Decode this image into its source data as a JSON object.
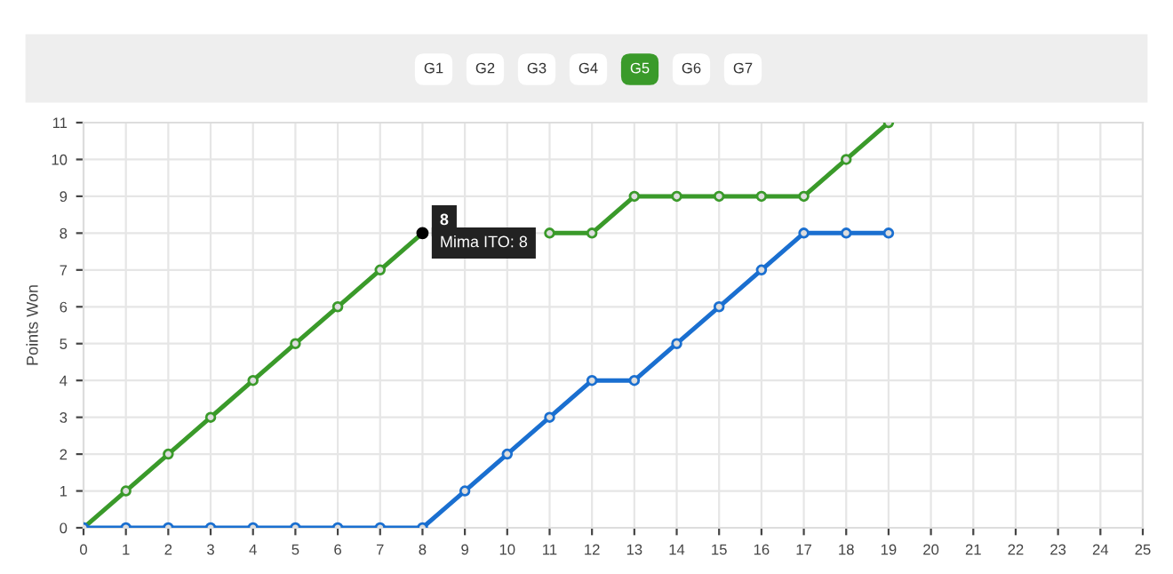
{
  "chart_data": {
    "type": "line",
    "ylabel": "Points Won",
    "x": [
      0,
      1,
      2,
      3,
      4,
      5,
      6,
      7,
      8,
      9,
      10,
      11,
      12,
      13,
      14,
      15,
      16,
      17,
      18,
      19
    ],
    "series": [
      {
        "color": "#3a9a2a",
        "values": [
          0,
          1,
          2,
          3,
          4,
          5,
          6,
          7,
          8,
          null,
          null,
          8,
          8,
          9,
          9,
          9,
          9,
          9,
          10,
          11
        ]
      },
      {
        "color": "#1a6fd0",
        "values": [
          0,
          0,
          0,
          0,
          0,
          0,
          0,
          0,
          0,
          1,
          2,
          3,
          4,
          4,
          5,
          6,
          7,
          8,
          8,
          8
        ]
      }
    ],
    "xlim": [
      0,
      25
    ],
    "xticks": [
      0,
      1,
      2,
      3,
      4,
      5,
      6,
      7,
      8,
      9,
      10,
      11,
      12,
      13,
      14,
      15,
      16,
      17,
      18,
      19,
      20,
      21,
      22,
      23,
      24,
      25
    ],
    "ylim": [
      0,
      11
    ],
    "yticks": [
      0,
      1,
      2,
      3,
      4,
      5,
      6,
      7,
      8,
      9,
      10,
      11
    ],
    "grid": true,
    "marker": "circle",
    "line_style": "solid",
    "legend": false,
    "annotations": [
      "G1",
      "G2",
      "G3",
      "G4",
      "G5",
      "G6",
      "G7",
      {
        "text": "8",
        "x": 8,
        "y": 8
      },
      {
        "text": "Mima ITO: 8",
        "x": 8,
        "y": 8
      }
    ]
  }
}
